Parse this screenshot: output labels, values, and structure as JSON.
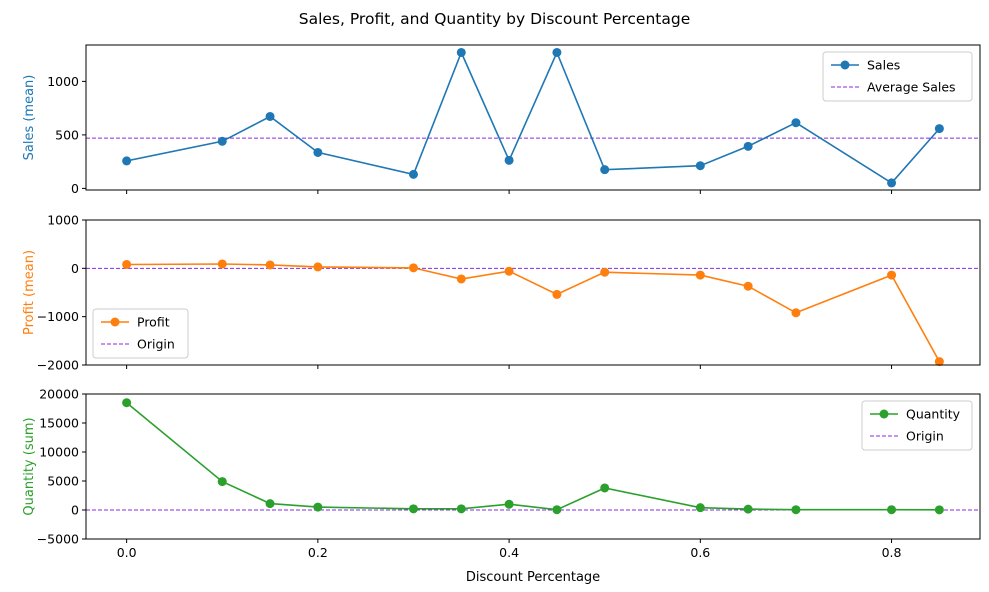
{
  "chart_data": {
    "type": "line",
    "title": "Sales, Profit, and Quantity by Discount Percentage",
    "xlabel": "Discount Percentage",
    "x": [
      0.0,
      0.1,
      0.15,
      0.2,
      0.3,
      0.35,
      0.4,
      0.45,
      0.5,
      0.6,
      0.65,
      0.7,
      0.8,
      0.85
    ],
    "xticks": [
      0.0,
      0.2,
      0.4,
      0.6,
      0.8
    ],
    "xtick_labels": [
      "0.0",
      "0.2",
      "0.4",
      "0.6",
      "0.8"
    ],
    "xlim": [
      -0.0425,
      0.8925
    ],
    "grid": false,
    "panels": [
      {
        "ylabel": "Sales (mean)",
        "series": [
          {
            "name": "Sales",
            "color": "#1f77b4",
            "marker": "circle",
            "values": [
              257,
              440,
              672,
              336,
              131,
              1270,
              262,
              1270,
              175,
              212,
              393,
              614,
              51,
              559
            ]
          }
        ],
        "reference_line": {
          "name": "Average Sales",
          "value": 470,
          "color": "#8a2be2",
          "style": "dashed"
        },
        "ylim": [
          -15,
          1340
        ],
        "yticks": [
          0,
          500,
          1000
        ],
        "ytick_labels": [
          "0",
          "500",
          "1000"
        ],
        "legend_position": "upper right"
      },
      {
        "ylabel": "Profit (mean)",
        "series": [
          {
            "name": "Profit",
            "color": "#ff7f0e",
            "marker": "circle",
            "values": [
              80,
              90,
              70,
              30,
              10,
              -220,
              -60,
              -540,
              -80,
              -140,
              -370,
              -920,
              -140,
              -1930
            ]
          }
        ],
        "reference_line": {
          "name": "Origin",
          "value": 0,
          "color": "#8a2be2",
          "style": "dashed"
        },
        "ylim": [
          -2000,
          1000
        ],
        "yticks": [
          -2000,
          -1000,
          0,
          1000
        ],
        "ytick_labels": [
          "−2000",
          "−1000",
          "0",
          "1000"
        ],
        "legend_position": "lower left"
      },
      {
        "ylabel": "Quantity (sum)",
        "series": [
          {
            "name": "Quantity",
            "color": "#2ca02c",
            "marker": "circle",
            "values": [
              18500,
              4900,
              1100,
              500,
              200,
              200,
              1000,
              50,
              3800,
              400,
              150,
              50,
              50,
              30
            ]
          }
        ],
        "reference_line": {
          "name": "Origin",
          "value": 0,
          "color": "#8a2be2",
          "style": "dashed"
        },
        "ylim": [
          -5000,
          20000
        ],
        "yticks": [
          -5000,
          0,
          5000,
          10000,
          15000,
          20000
        ],
        "ytick_labels": [
          "−5000",
          "0",
          "5000",
          "10000",
          "15000",
          "20000"
        ],
        "legend_position": "upper right"
      }
    ]
  }
}
